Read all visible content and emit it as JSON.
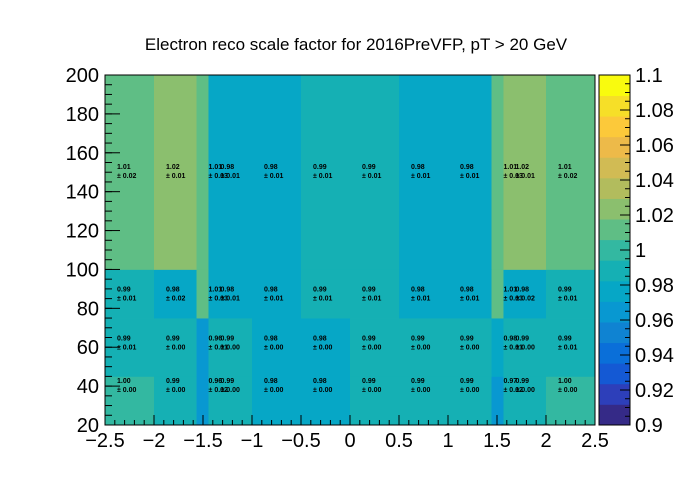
{
  "chart_data": {
    "type": "heatmap",
    "title": "Electron reco scale factor for 2016PreVFP, pT > 20 GeV",
    "x_edges": [
      -2.5,
      -2.0,
      -1.566,
      -1.444,
      -1.0,
      -0.5,
      0.0,
      0.5,
      1.0,
      1.444,
      1.566,
      2.0,
      2.5
    ],
    "y_edges": [
      20,
      45,
      75,
      100,
      500
    ],
    "ylim": [
      20,
      200
    ],
    "xlim": [
      -2.5,
      2.5
    ],
    "zlim": [
      0.9,
      1.1
    ],
    "x_ticks": [
      "-2.5",
      "-2",
      "-1.5",
      "-1",
      "-0.5",
      "0",
      "0.5",
      "1",
      "1.5",
      "2",
      "2.5"
    ],
    "y_ticks": [
      "20",
      "40",
      "60",
      "80",
      "100",
      "120",
      "140",
      "160",
      "180",
      "200"
    ],
    "z_ticks": [
      "0.9",
      "0.92",
      "0.94",
      "0.96",
      "0.98",
      "1",
      "1.02",
      "1.04",
      "1.06",
      "1.08",
      "1.1"
    ],
    "values": [
      [
        1.0,
        0.99,
        0.96,
        0.99,
        0.98,
        0.98,
        0.99,
        0.99,
        0.99,
        0.97,
        0.99,
        1.0
      ],
      [
        0.99,
        0.99,
        0.96,
        0.99,
        0.98,
        0.98,
        0.99,
        0.99,
        0.99,
        0.98,
        0.99,
        0.99
      ],
      [
        0.99,
        0.98,
        1.01,
        0.98,
        0.98,
        0.99,
        0.99,
        0.98,
        0.98,
        1.01,
        0.98,
        0.99
      ],
      [
        1.01,
        1.02,
        1.01,
        0.98,
        0.98,
        0.99,
        0.99,
        0.98,
        0.98,
        1.01,
        1.02,
        1.01
      ]
    ],
    "value_labels": [
      [
        "1.00",
        "0.99",
        "0.96",
        "0.99",
        "0.98",
        "0.98",
        "0.99",
        "0.99",
        "0.99",
        "0.97",
        "0.99",
        "1.00"
      ],
      [
        "0.99",
        "0.99",
        "0.96",
        "0.99",
        "0.98",
        "0.98",
        "0.99",
        "0.99",
        "0.99",
        "0.98",
        "0.99",
        "0.99"
      ],
      [
        "0.99",
        "0.98",
        "1.01",
        "0.98",
        "0.98",
        "0.99",
        "0.99",
        "0.98",
        "0.98",
        "1.01",
        "0.98",
        "0.99"
      ],
      [
        "1.01",
        "1.02",
        "1.01",
        "0.98",
        "0.98",
        "0.99",
        "0.99",
        "0.98",
        "0.98",
        "1.01",
        "1.02",
        "1.01"
      ]
    ],
    "error_labels": [
      [
        "± 0.00",
        "± 0.00",
        "± 0.02",
        "± 0.00",
        "± 0.00",
        "± 0.00",
        "± 0.00",
        "± 0.00",
        "± 0.00",
        "± 0.02",
        "± 0.00",
        "± 0.00"
      ],
      [
        "± 0.01",
        "± 0.00",
        "± 0.01",
        "± 0.00",
        "± 0.00",
        "± 0.00",
        "± 0.00",
        "± 0.00",
        "± 0.00",
        "± 0.01",
        "± 0.00",
        "± 0.01"
      ],
      [
        "± 0.01",
        "± 0.02",
        "± 0.03",
        "± 0.01",
        "± 0.01",
        "± 0.01",
        "± 0.01",
        "± 0.01",
        "± 0.01",
        "± 0.03",
        "± 0.02",
        "± 0.01"
      ],
      [
        "± 0.02",
        "± 0.01",
        "± 0.03",
        "± 0.01",
        "± 0.01",
        "± 0.01",
        "± 0.01",
        "± 0.01",
        "± 0.01",
        "± 0.03",
        "± 0.01",
        "± 0.02"
      ]
    ],
    "label_y": [
      40,
      62,
      87,
      150
    ],
    "palette": [
      "#352a87",
      "#2d3fba",
      "#1459d4",
      "#0a6fd9",
      "#0f83d2",
      "#0898d1",
      "#06a7c6",
      "#15b0b4",
      "#33b8a1",
      "#5fbe85",
      "#8bbf6e",
      "#b2bc5d",
      "#d1bb54",
      "#edba49",
      "#fcc93a",
      "#f6df28",
      "#f9fb0e"
    ]
  }
}
